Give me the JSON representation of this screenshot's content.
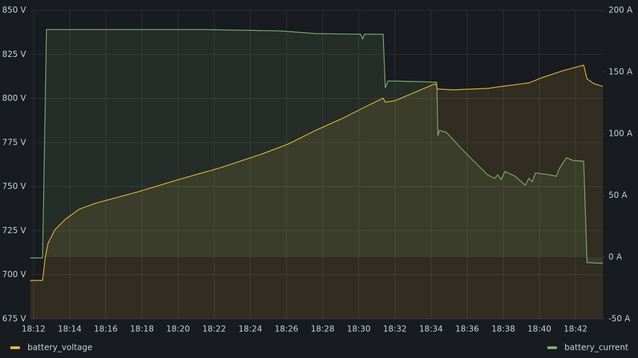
{
  "chart_data": {
    "type": "line",
    "xlim": [
      "18:11:49",
      "18:43:31"
    ],
    "xticks": [
      {
        "value": "18:12:00",
        "label": "18:12"
      },
      {
        "value": "18:14:00",
        "label": "18:14"
      },
      {
        "value": "18:16:00",
        "label": "18:16"
      },
      {
        "value": "18:18:00",
        "label": "18:18"
      },
      {
        "value": "18:20:00",
        "label": "18:20"
      },
      {
        "value": "18:22:00",
        "label": "18:22"
      },
      {
        "value": "18:24:00",
        "label": "18:24"
      },
      {
        "value": "18:26:00",
        "label": "18:26"
      },
      {
        "value": "18:28:00",
        "label": "18:28"
      },
      {
        "value": "18:30:00",
        "label": "18:30"
      },
      {
        "value": "18:32:00",
        "label": "18:32"
      },
      {
        "value": "18:34:00",
        "label": "18:34"
      },
      {
        "value": "18:36:00",
        "label": "18:36"
      },
      {
        "value": "18:38:00",
        "label": "18:38"
      },
      {
        "value": "18:40:00",
        "label": "18:40"
      },
      {
        "value": "18:42:00",
        "label": "18:42"
      }
    ],
    "ylim": [
      675,
      850
    ],
    "yticks": [
      {
        "value": 675,
        "label": "675 V"
      },
      {
        "value": 700,
        "label": "700 V"
      },
      {
        "value": 725,
        "label": "725 V"
      },
      {
        "value": 750,
        "label": "750 V"
      },
      {
        "value": 775,
        "label": "775 V"
      },
      {
        "value": 800,
        "label": "800 V"
      },
      {
        "value": 825,
        "label": "825 V"
      },
      {
        "value": 850,
        "label": "850 V"
      }
    ],
    "y2lim": [
      -50,
      200
    ],
    "y2ticks": [
      {
        "value": -50,
        "label": "-50 A"
      },
      {
        "value": 0,
        "label": "0 A"
      },
      {
        "value": 50,
        "label": "50 A"
      },
      {
        "value": 100,
        "label": "100 A"
      },
      {
        "value": 150,
        "label": "150 A"
      },
      {
        "value": 200,
        "label": "200 A"
      }
    ],
    "grid": true,
    "series": [
      {
        "name": "battery_voltage",
        "color": "#eab839",
        "fill": true,
        "x": [
          "18:11:49",
          "18:12:30",
          "18:12:39",
          "18:12:48",
          "18:13:11",
          "18:13:45",
          "18:14:31",
          "18:15:28",
          "18:17:44",
          "18:20:01",
          "18:22:18",
          "18:24:35",
          "18:26:06",
          "18:27:38",
          "18:29:09",
          "18:30:17",
          "18:31:21",
          "18:31:28",
          "18:32:00",
          "18:34:14",
          "18:34:23",
          "18:35:14",
          "18:37:08",
          "18:37:53",
          "18:39:25",
          "18:40:10",
          "18:41:19",
          "18:42:27",
          "18:42:38",
          "18:43:01",
          "18:43:31"
        ],
        "values": [
          696.8,
          696.8,
          710,
          717.8,
          725.6,
          731.4,
          737.2,
          740.7,
          746.9,
          754,
          760.6,
          768.3,
          774.2,
          782,
          789,
          794.8,
          800.2,
          797.9,
          798.7,
          808.4,
          805.3,
          804.9,
          805.7,
          806.8,
          808.8,
          811.9,
          815.8,
          818.9,
          811.1,
          808.4,
          806.8
        ]
      },
      {
        "name": "battery_current",
        "color": "#7eb26d",
        "fill": true,
        "axis": "y2",
        "x": [
          "18:11:49",
          "18:12:30",
          "18:12:43",
          "18:17:44",
          "18:21:33",
          "18:25:43",
          "18:27:38",
          "18:30:06",
          "18:30:13",
          "18:30:19",
          "18:31:21",
          "18:31:28",
          "18:31:37",
          "18:33:20",
          "18:34:19",
          "18:34:23",
          "18:34:28",
          "18:34:51",
          "18:35:37",
          "18:36:22",
          "18:37:08",
          "18:37:31",
          "18:37:42",
          "18:37:53",
          "18:38:05",
          "18:38:39",
          "18:39:13",
          "18:39:25",
          "18:39:36",
          "18:39:47",
          "18:40:33",
          "18:40:56",
          "18:41:07",
          "18:41:30",
          "18:41:53",
          "18:42:27",
          "18:42:38",
          "18:43:31"
        ],
        "values": [
          -0.6,
          -0.6,
          184.4,
          184.4,
          184.4,
          183.3,
          181.1,
          180.6,
          176.7,
          180.6,
          180.6,
          137.2,
          142.8,
          142.2,
          141.7,
          98.3,
          102.8,
          101.1,
          88.9,
          77.8,
          66.7,
          63.9,
          66.7,
          62.8,
          69.4,
          65.6,
          58.3,
          63.9,
          61.1,
          68.3,
          66.7,
          65.6,
          72.2,
          80.6,
          78.3,
          77.8,
          -4.4,
          -5.0
        ]
      }
    ]
  }
}
